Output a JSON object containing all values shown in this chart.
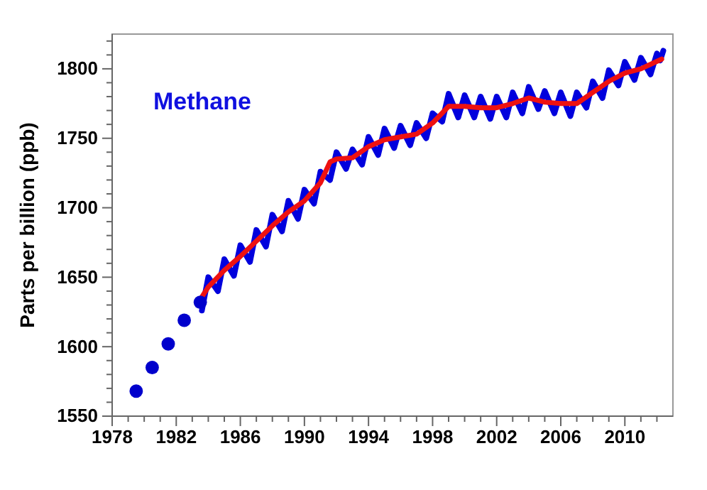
{
  "chart_data": {
    "type": "line",
    "ylabel": "Parts per billion (ppb)",
    "annotations": [
      "Methane"
    ],
    "xlim": [
      1978,
      2013
    ],
    "xticks": [
      1978,
      {
        "value": 1979,
        "label": null
      },
      {
        "value": 1980,
        "label": null
      },
      {
        "value": 1981,
        "label": null
      },
      1982,
      {
        "value": 1983,
        "label": null
      },
      {
        "value": 1984,
        "label": null
      },
      {
        "value": 1985,
        "label": null
      },
      1986,
      {
        "value": 1987,
        "label": null
      },
      {
        "value": 1988,
        "label": null
      },
      {
        "value": 1989,
        "label": null
      },
      1990,
      {
        "value": 1991,
        "label": null
      },
      {
        "value": 1992,
        "label": null
      },
      {
        "value": 1993,
        "label": null
      },
      1994,
      {
        "value": 1995,
        "label": null
      },
      {
        "value": 1996,
        "label": null
      },
      {
        "value": 1997,
        "label": null
      },
      1998,
      {
        "value": 1999,
        "label": null
      },
      {
        "value": 2000,
        "label": null
      },
      {
        "value": 2001,
        "label": null
      },
      2002,
      {
        "value": 2003,
        "label": null
      },
      {
        "value": 2004,
        "label": null
      },
      {
        "value": 2005,
        "label": null
      },
      2006,
      {
        "value": 2007,
        "label": null
      },
      {
        "value": 2008,
        "label": null
      },
      {
        "value": 2009,
        "label": null
      },
      2010,
      {
        "value": 2011,
        "label": null
      },
      {
        "value": 2012,
        "label": null
      }
    ],
    "ylim": [
      1550,
      1825
    ],
    "yticks": [
      1550,
      {
        "value": 1560,
        "label": null
      },
      {
        "value": 1570,
        "label": null
      },
      {
        "value": 1580,
        "label": null
      },
      {
        "value": 1590,
        "label": null
      },
      1600,
      {
        "value": 1610,
        "label": null
      },
      {
        "value": 1620,
        "label": null
      },
      {
        "value": 1630,
        "label": null
      },
      {
        "value": 1640,
        "label": null
      },
      1650,
      {
        "value": 1660,
        "label": null
      },
      {
        "value": 1670,
        "label": null
      },
      {
        "value": 1680,
        "label": null
      },
      {
        "value": 1690,
        "label": null
      },
      1700,
      {
        "value": 1710,
        "label": null
      },
      {
        "value": 1720,
        "label": null
      },
      {
        "value": 1730,
        "label": null
      },
      {
        "value": 1740,
        "label": null
      },
      1750,
      {
        "value": 1760,
        "label": null
      },
      {
        "value": 1770,
        "label": null
      },
      {
        "value": 1780,
        "label": null
      },
      {
        "value": 1790,
        "label": null
      },
      1800,
      {
        "value": 1810,
        "label": null
      },
      {
        "value": 1820,
        "label": null
      }
    ],
    "grid": false,
    "series": [
      {
        "type": "scatter",
        "color": "#0000cc",
        "marker": "circle",
        "x": [
          1979.5,
          1980.5,
          1981.5,
          1982.5,
          1983.5
        ],
        "values": [
          1568,
          1585,
          1602,
          1619,
          1632
        ]
      },
      {
        "color": "#0000dd",
        "x": [
          1983.6,
          1984.0,
          1984.6,
          1985.0,
          1985.6,
          1986.0,
          1986.6,
          1987.0,
          1987.6,
          1988.0,
          1988.6,
          1989.0,
          1989.6,
          1990.0,
          1990.6,
          1991.0,
          1991.6,
          1992.0,
          1992.6,
          1993.0,
          1993.6,
          1994.0,
          1994.6,
          1995.0,
          1995.6,
          1996.0,
          1996.6,
          1997.0,
          1997.6,
          1998.0,
          1998.6,
          1999.0,
          1999.6,
          2000.0,
          2000.6,
          2001.0,
          2001.6,
          2002.0,
          2002.6,
          2003.0,
          2003.6,
          2004.0,
          2004.6,
          2005.0,
          2005.6,
          2006.0,
          2006.6,
          2007.0,
          2007.6,
          2008.0,
          2008.6,
          2009.0,
          2009.6,
          2010.0,
          2010.6,
          2011.0,
          2011.6,
          2012.0,
          2012.2,
          2012.4
        ],
        "values": [
          1626,
          1650,
          1640,
          1663,
          1651,
          1673,
          1661,
          1684,
          1672,
          1695,
          1683,
          1705,
          1692,
          1713,
          1703,
          1726,
          1720,
          1740,
          1728,
          1742,
          1731,
          1751,
          1738,
          1757,
          1743,
          1759,
          1745,
          1761,
          1750,
          1768,
          1762,
          1782,
          1765,
          1781,
          1765,
          1780,
          1764,
          1780,
          1765,
          1783,
          1768,
          1787,
          1771,
          1784,
          1768,
          1783,
          1766,
          1783,
          1772,
          1791,
          1779,
          1799,
          1788,
          1805,
          1792,
          1808,
          1796,
          1811,
          1806,
          1813
        ]
      },
      {
        "color": "#ee1111",
        "x": [
          1983.5,
          1984,
          1985,
          1986,
          1987,
          1988,
          1989,
          1990,
          1991,
          1991.6,
          1992,
          1993,
          1994,
          1995,
          1996,
          1997,
          1998,
          1999,
          2000,
          2001,
          2002,
          2003,
          2004,
          2005,
          2006,
          2007,
          2008,
          2009,
          2010,
          2011,
          2012.3
        ],
        "values": [
          1634,
          1643,
          1655,
          1665,
          1676,
          1687,
          1697,
          1705,
          1718,
          1733,
          1735,
          1736,
          1744,
          1749,
          1751,
          1753,
          1761,
          1773,
          1773,
          1772,
          1772,
          1775,
          1779,
          1776,
          1775,
          1775,
          1783,
          1791,
          1797,
          1800,
          1807
        ]
      }
    ]
  }
}
